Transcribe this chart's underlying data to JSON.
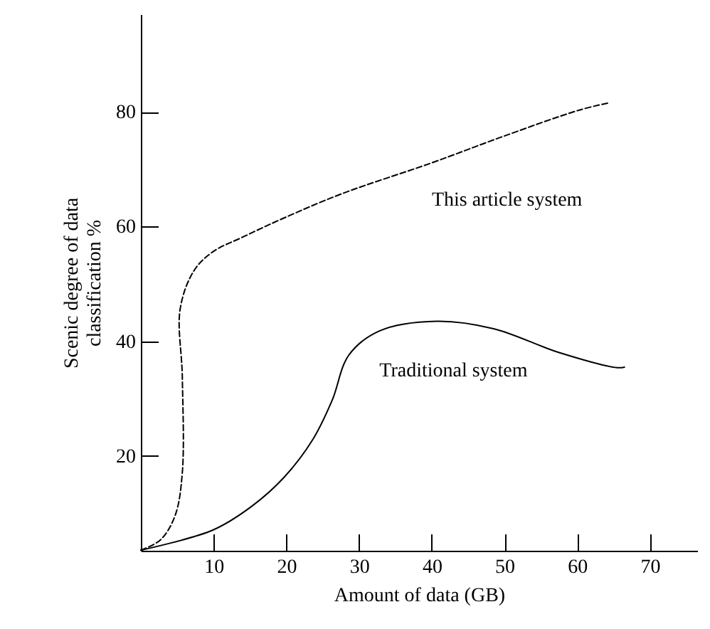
{
  "chart_data": {
    "type": "line",
    "xlabel": "Amount of data (GB)",
    "ylabel": "Scenic degree of data\nclassification %",
    "xlim": [
      0,
      76.5
    ],
    "ylim": [
      3.5,
      97
    ],
    "xticks": [
      10,
      20,
      30,
      40,
      50,
      60,
      70
    ],
    "yticks": [
      20,
      40,
      60,
      80
    ],
    "grid": false,
    "series": [
      {
        "name": "This article system",
        "color": "#000000",
        "line_style": "dashed",
        "x": [
          0,
          2.7,
          4.7,
          5.7,
          5.7,
          5.4,
          7.3,
          9.9,
          13.9,
          19.7,
          27.6,
          40,
          49.8,
          60.3,
          64.5
        ],
        "values": [
          3.6,
          5.4,
          9.6,
          17.1,
          33.8,
          45.6,
          52.3,
          55.6,
          58.1,
          61.5,
          65.7,
          71.1,
          75.7,
          80.3,
          81.6
        ]
      },
      {
        "name": "Traditional system",
        "color": "#000000",
        "line_style": "solid",
        "x": [
          0,
          9.9,
          15.2,
          19.7,
          23.7,
          26.3,
          28.6,
          32.8,
          40.7,
          48.5,
          57.6,
          65.5,
          66.5
        ],
        "values": [
          3.6,
          7.1,
          11.2,
          16.3,
          23,
          29.7,
          37.6,
          41.8,
          43.5,
          42.2,
          38,
          35.4,
          35.5
        ]
      }
    ]
  }
}
